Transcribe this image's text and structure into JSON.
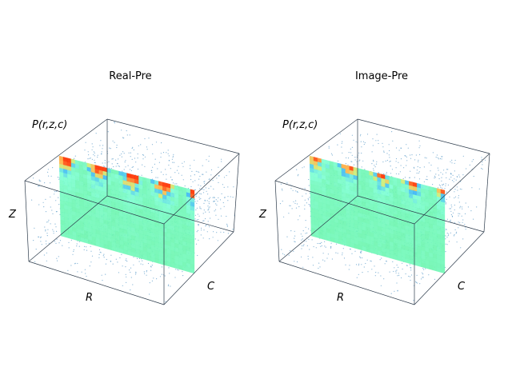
{
  "chart_data": [
    {
      "type": "scatter",
      "title": "Real-Pre",
      "axis_labels": {
        "x": "R",
        "y": "C",
        "z": "Z",
        "value": "P(r,z,c)"
      },
      "grid": false,
      "content": "3D scatter of points filling a box with a colored surface slice",
      "colors": {
        "points": "#1f77b4",
        "surface_low": "#7fffd4",
        "surface_high": "#ff3300",
        "box": "#2b3a4a"
      }
    },
    {
      "type": "scatter",
      "title": "Image-Pre",
      "axis_labels": {
        "x": "R",
        "y": "C",
        "z": "Z",
        "value": "P(r,z,c)"
      },
      "grid": false,
      "content": "3D scatter of points filling a box with a colored surface slice",
      "colors": {
        "points": "#1f77b4",
        "surface_low": "#7fffd4",
        "surface_high": "#ff3300",
        "box": "#2b3a4a"
      }
    }
  ]
}
